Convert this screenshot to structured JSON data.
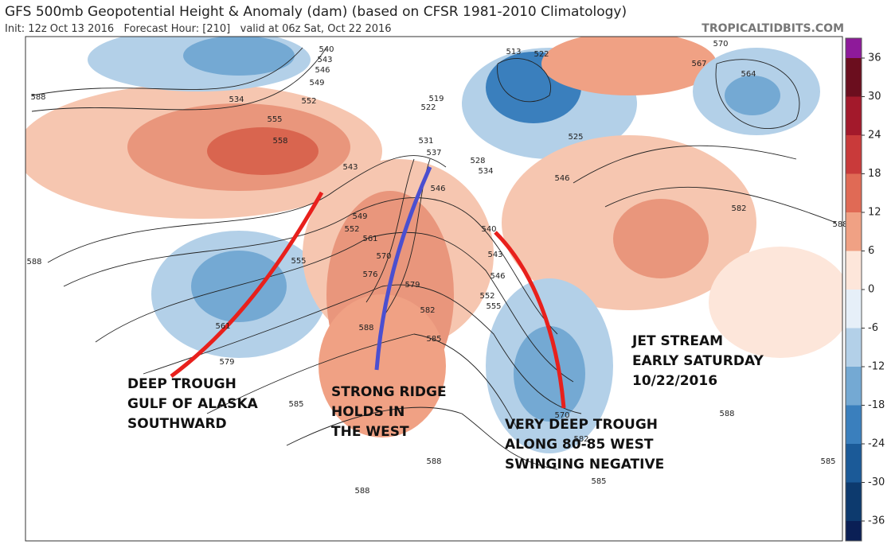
{
  "header": {
    "title": "GFS 500mb Geopotential Height & Anomaly (dam) (based on CFSR 1981-2010 Climatology)",
    "subtitle": "Init: 12z Oct 13 2016   Forecast Hour: [210]   valid at 06z Sat, Oct 22 2016",
    "source": "TROPICALTIDBITS.COM"
  },
  "colorbar": {
    "ticks": [
      36,
      30,
      24,
      18,
      12,
      6,
      0,
      -6,
      -12,
      -18,
      -24,
      -30,
      -36
    ],
    "colors": [
      "#8e1a9a",
      "#6b0e1e",
      "#a3192b",
      "#c93a3a",
      "#e06a55",
      "#f0a184",
      "#fde6da",
      "#e6eff8",
      "#b3d0e8",
      "#74a9d3",
      "#3a7fbd",
      "#1b5a98",
      "#0d3a6e",
      "#0a1f55"
    ]
  },
  "contour_labels": [
    "570",
    "567",
    "564",
    "588",
    "534",
    "540",
    "543",
    "546",
    "549",
    "552",
    "555",
    "558",
    "513",
    "522",
    "519",
    "522",
    "525",
    "531",
    "537",
    "528",
    "534",
    "543",
    "546",
    "546",
    "582",
    "588",
    "549",
    "552",
    "561",
    "540",
    "543",
    "546",
    "552",
    "555",
    "570",
    "576",
    "579",
    "555",
    "588",
    "582",
    "588",
    "585",
    "561",
    "579",
    "585",
    "588",
    "588",
    "585",
    "588",
    "585",
    "582",
    "570"
  ],
  "annotations": [
    {
      "lines": [
        "DEEP TROUGH",
        "GULF OF ALASKA",
        "SOUTHWARD"
      ]
    },
    {
      "lines": [
        "STRONG RIDGE",
        "HOLDS IN",
        "THE WEST"
      ]
    },
    {
      "lines": [
        "VERY DEEP TROUGH",
        "ALONG 80-85 WEST",
        "SWINGING NEGATIVE"
      ]
    },
    {
      "lines": [
        "JET STREAM",
        "EARLY SATURDAY",
        "10/22/2016"
      ]
    }
  ]
}
